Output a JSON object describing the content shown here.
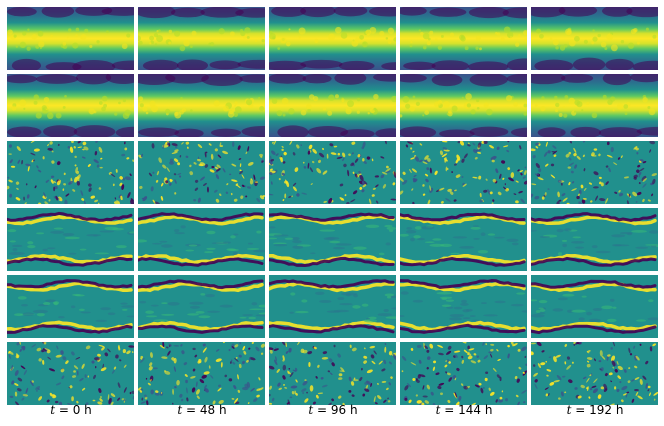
{
  "columns": [
    {
      "var": "t",
      "eq": " = ",
      "value": "0 h"
    },
    {
      "var": "t",
      "eq": " = ",
      "value": "48 h"
    },
    {
      "var": "t",
      "eq": " = ",
      "value": "96 h"
    },
    {
      "var": "t",
      "eq": " = ",
      "value": "144 h"
    },
    {
      "var": "t",
      "eq": " = ",
      "value": "192 h"
    }
  ],
  "rows": 6,
  "colormap": "viridis",
  "colors": {
    "dark": "#440154",
    "navy": "#3b528b",
    "teal": "#21908d",
    "green": "#5dc863",
    "yellow": "#fde725"
  }
}
